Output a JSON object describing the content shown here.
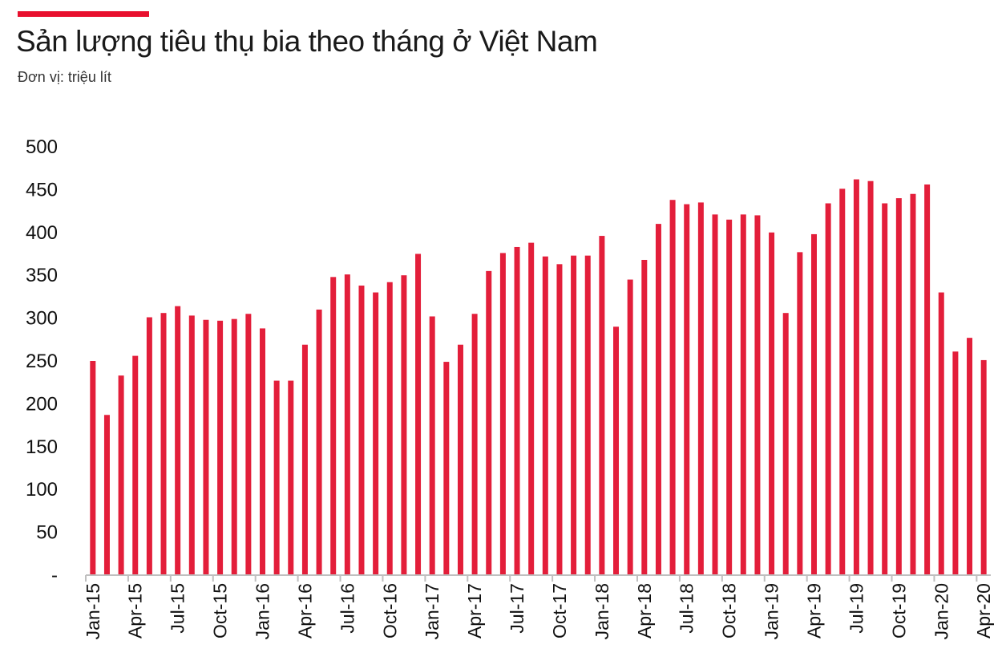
{
  "header": {
    "title": "Sản lượng tiêu thụ bia theo tháng ở Việt Nam",
    "subtitle": "Đơn vị: triệu lít"
  },
  "colors": {
    "accent": "#e8102e",
    "bar": "#e31e3a",
    "axis": "#bfbfbf"
  },
  "chart_data": {
    "type": "bar",
    "title": "Sản lượng tiêu thụ bia theo tháng ở Việt Nam",
    "subtitle": "Đơn vị: triệu lít",
    "xlabel": "",
    "ylabel": "",
    "ylim": [
      0,
      500
    ],
    "yticks": [
      0,
      50,
      100,
      150,
      200,
      250,
      300,
      350,
      400,
      450,
      500
    ],
    "ytick_labels": [
      "-",
      "50",
      "100",
      "150",
      "200",
      "250",
      "300",
      "350",
      "400",
      "450",
      "500"
    ],
    "grid": false,
    "legend": "none",
    "categories": [
      "Jan-15",
      "Feb-15",
      "Mar-15",
      "Apr-15",
      "May-15",
      "Jun-15",
      "Jul-15",
      "Aug-15",
      "Sep-15",
      "Oct-15",
      "Nov-15",
      "Dec-15",
      "Jan-16",
      "Feb-16",
      "Mar-16",
      "Apr-16",
      "May-16",
      "Jun-16",
      "Jul-16",
      "Aug-16",
      "Sep-16",
      "Oct-16",
      "Nov-16",
      "Dec-16",
      "Jan-17",
      "Feb-17",
      "Mar-17",
      "Apr-17",
      "May-17",
      "Jun-17",
      "Jul-17",
      "Aug-17",
      "Sep-17",
      "Oct-17",
      "Nov-17",
      "Dec-17",
      "Jan-18",
      "Feb-18",
      "Mar-18",
      "Apr-18",
      "May-18",
      "Jun-18",
      "Jul-18",
      "Aug-18",
      "Sep-18",
      "Oct-18",
      "Nov-18",
      "Dec-18",
      "Jan-19",
      "Feb-19",
      "Mar-19",
      "Apr-19",
      "May-19",
      "Jun-19",
      "Jul-19",
      "Aug-19",
      "Sep-19",
      "Oct-19",
      "Nov-19",
      "Dec-19",
      "Jan-20",
      "Feb-20",
      "Mar-20",
      "Apr-20"
    ],
    "xtick_labels": [
      "Jan-15",
      "Apr-15",
      "Jul-15",
      "Oct-15",
      "Jan-16",
      "Apr-16",
      "Jul-16",
      "Oct-16",
      "Jan-17",
      "Apr-17",
      "Jul-17",
      "Oct-17",
      "Jan-18",
      "Apr-18",
      "Jul-18",
      "Oct-18",
      "Jan-19",
      "Apr-19",
      "Jul-19",
      "Oct-19",
      "Jan-20",
      "Apr-20"
    ],
    "values": [
      250,
      187,
      233,
      256,
      301,
      306,
      314,
      303,
      298,
      297,
      299,
      305,
      288,
      227,
      227,
      269,
      310,
      348,
      351,
      338,
      330,
      342,
      350,
      375,
      302,
      249,
      269,
      305,
      355,
      376,
      383,
      388,
      372,
      363,
      373,
      373,
      396,
      290,
      345,
      368,
      410,
      438,
      433,
      435,
      421,
      415,
      421,
      420,
      400,
      306,
      377,
      398,
      434,
      451,
      462,
      460,
      434,
      440,
      445,
      456,
      330,
      261,
      277,
      251
    ]
  }
}
